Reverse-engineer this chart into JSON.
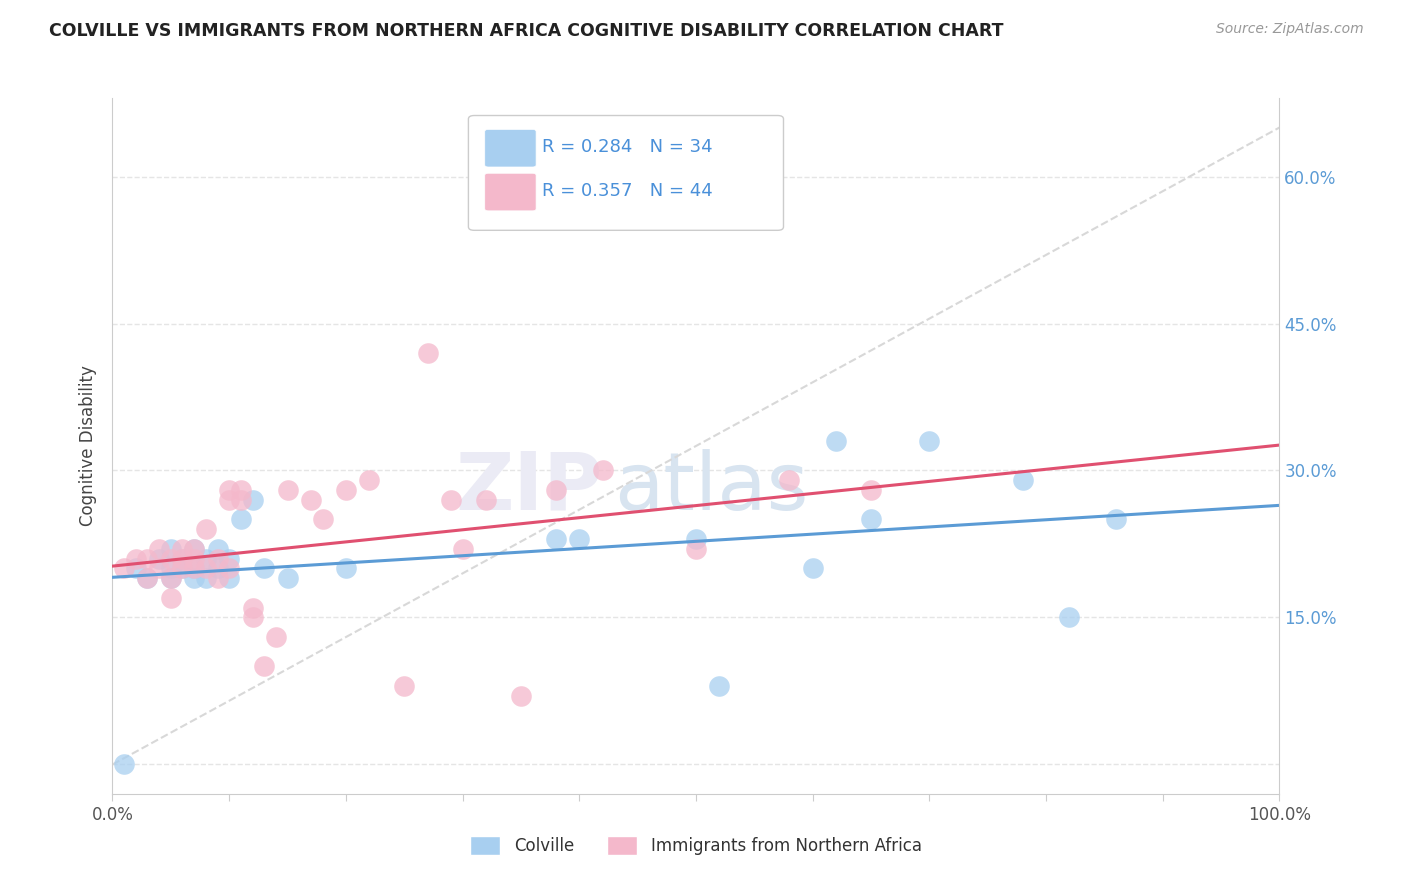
{
  "title": "COLVILLE VS IMMIGRANTS FROM NORTHERN AFRICA COGNITIVE DISABILITY CORRELATION CHART",
  "source": "Source: ZipAtlas.com",
  "ylabel": "Cognitive Disability",
  "xlim": [
    0,
    1.0
  ],
  "ylim": [
    -0.03,
    0.68
  ],
  "colville_color": "#a8cff0",
  "immigrants_color": "#f4b8cb",
  "colville_line_color": "#5b9bd5",
  "immigrants_line_color": "#e05070",
  "dash_line_color": "#d8d8d8",
  "legend_text_color": "#4a90d9",
  "colville_R": 0.284,
  "colville_N": 34,
  "immigrants_R": 0.357,
  "immigrants_N": 44,
  "colville_x": [
    0.01,
    0.02,
    0.03,
    0.04,
    0.05,
    0.05,
    0.05,
    0.06,
    0.06,
    0.07,
    0.07,
    0.07,
    0.08,
    0.08,
    0.09,
    0.09,
    0.1,
    0.1,
    0.11,
    0.12,
    0.13,
    0.15,
    0.2,
    0.38,
    0.4,
    0.5,
    0.52,
    0.6,
    0.62,
    0.65,
    0.7,
    0.78,
    0.82,
    0.86
  ],
  "colville_y": [
    0.0,
    0.2,
    0.19,
    0.21,
    0.2,
    0.22,
    0.19,
    0.21,
    0.2,
    0.19,
    0.22,
    0.2,
    0.21,
    0.19,
    0.2,
    0.22,
    0.19,
    0.21,
    0.25,
    0.27,
    0.2,
    0.19,
    0.2,
    0.23,
    0.23,
    0.23,
    0.08,
    0.2,
    0.33,
    0.25,
    0.33,
    0.29,
    0.15,
    0.25
  ],
  "immigrants_x": [
    0.01,
    0.02,
    0.03,
    0.03,
    0.04,
    0.04,
    0.05,
    0.05,
    0.05,
    0.06,
    0.06,
    0.06,
    0.07,
    0.07,
    0.07,
    0.08,
    0.08,
    0.09,
    0.09,
    0.1,
    0.1,
    0.1,
    0.11,
    0.11,
    0.12,
    0.12,
    0.13,
    0.14,
    0.15,
    0.17,
    0.18,
    0.2,
    0.22,
    0.25,
    0.27,
    0.29,
    0.3,
    0.32,
    0.35,
    0.38,
    0.42,
    0.5,
    0.58,
    0.65
  ],
  "immigrants_y": [
    0.2,
    0.21,
    0.19,
    0.21,
    0.2,
    0.22,
    0.19,
    0.21,
    0.17,
    0.21,
    0.2,
    0.22,
    0.2,
    0.22,
    0.21,
    0.2,
    0.24,
    0.19,
    0.21,
    0.2,
    0.28,
    0.27,
    0.28,
    0.27,
    0.16,
    0.15,
    0.1,
    0.13,
    0.28,
    0.27,
    0.25,
    0.28,
    0.29,
    0.08,
    0.42,
    0.27,
    0.22,
    0.27,
    0.07,
    0.28,
    0.3,
    0.22,
    0.29,
    0.28
  ]
}
